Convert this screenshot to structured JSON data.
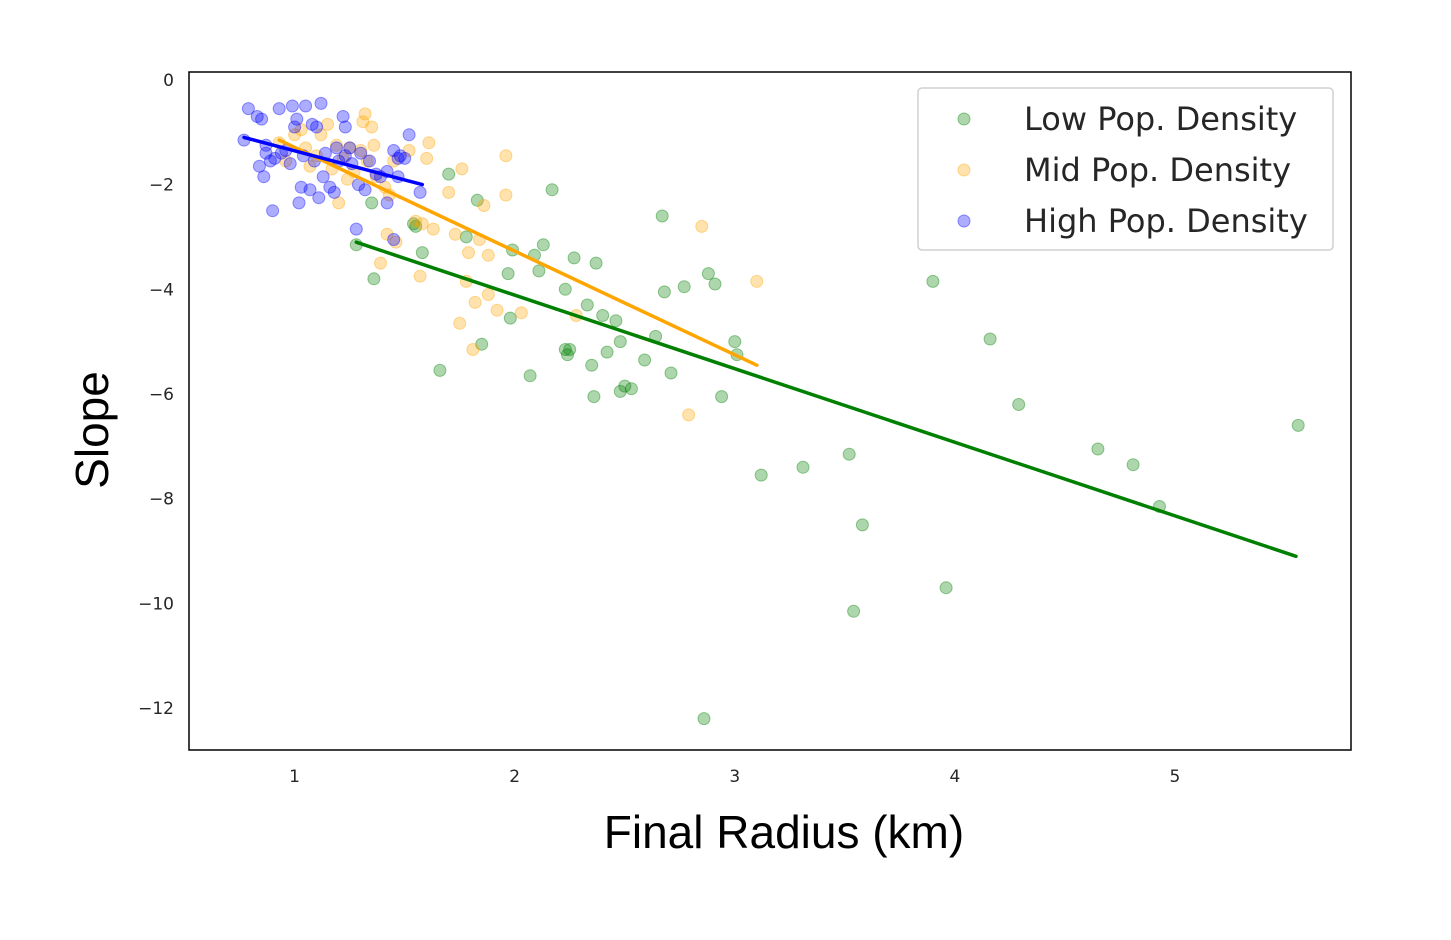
{
  "chart_data": {
    "type": "scatter",
    "xlabel": "Final Radius (km)",
    "ylabel": "Slope",
    "xlim": [
      0.52,
      5.8
    ],
    "ylim": [
      -12.8,
      0.15
    ],
    "xticks": [
      1,
      2,
      3,
      4,
      5
    ],
    "yticks": [
      0,
      -2,
      -4,
      -6,
      -8,
      -10,
      -12
    ],
    "xtick_labels": [
      "1",
      "2",
      "3",
      "4",
      "5"
    ],
    "ytick_labels": [
      "0",
      "−2",
      "−4",
      "−6",
      "−8",
      "−10",
      "−12"
    ],
    "grid": false,
    "legend_position": "top-right",
    "series": [
      {
        "name": "Low Pop. Density",
        "color": "#008000",
        "fit_line": [
          [
            1.28,
            -3.1
          ],
          [
            5.55,
            -9.1
          ]
        ],
        "points": [
          [
            1.28,
            -3.15
          ],
          [
            1.35,
            -2.35
          ],
          [
            1.36,
            -3.8
          ],
          [
            1.54,
            -2.75
          ],
          [
            1.55,
            -2.8
          ],
          [
            1.58,
            -3.3
          ],
          [
            1.66,
            -5.55
          ],
          [
            1.7,
            -1.8
          ],
          [
            1.78,
            -3.0
          ],
          [
            1.83,
            -2.3
          ],
          [
            1.85,
            -5.05
          ],
          [
            1.97,
            -3.7
          ],
          [
            1.98,
            -4.55
          ],
          [
            1.99,
            -3.25
          ],
          [
            2.07,
            -5.65
          ],
          [
            2.09,
            -3.35
          ],
          [
            2.11,
            -3.65
          ],
          [
            2.13,
            -3.15
          ],
          [
            2.17,
            -2.1
          ],
          [
            2.23,
            -5.15
          ],
          [
            2.23,
            -4.0
          ],
          [
            2.24,
            -5.25
          ],
          [
            2.25,
            -5.15
          ],
          [
            2.27,
            -3.4
          ],
          [
            2.33,
            -4.3
          ],
          [
            2.35,
            -5.45
          ],
          [
            2.36,
            -6.05
          ],
          [
            2.37,
            -3.5
          ],
          [
            2.4,
            -4.5
          ],
          [
            2.42,
            -5.2
          ],
          [
            2.46,
            -4.6
          ],
          [
            2.48,
            -5.0
          ],
          [
            2.48,
            -5.95
          ],
          [
            2.5,
            -5.85
          ],
          [
            2.53,
            -5.9
          ],
          [
            2.59,
            -5.35
          ],
          [
            2.64,
            -4.9
          ],
          [
            2.67,
            -2.6
          ],
          [
            2.68,
            -4.05
          ],
          [
            2.71,
            -5.6
          ],
          [
            2.77,
            -3.95
          ],
          [
            2.86,
            -12.2
          ],
          [
            2.88,
            -3.7
          ],
          [
            2.91,
            -3.9
          ],
          [
            2.94,
            -6.05
          ],
          [
            3.0,
            -5.0
          ],
          [
            3.01,
            -5.25
          ],
          [
            3.12,
            -7.55
          ],
          [
            3.31,
            -7.4
          ],
          [
            3.52,
            -7.15
          ],
          [
            3.54,
            -10.15
          ],
          [
            3.58,
            -8.5
          ],
          [
            3.9,
            -3.85
          ],
          [
            3.96,
            -9.7
          ],
          [
            4.16,
            -4.95
          ],
          [
            4.29,
            -6.2
          ],
          [
            4.65,
            -7.05
          ],
          [
            4.81,
            -7.35
          ],
          [
            4.93,
            -8.15
          ],
          [
            5.56,
            -6.6
          ]
        ]
      },
      {
        "name": "Mid Pop. Density",
        "color": "#FFA500",
        "fit_line": [
          [
            0.93,
            -1.15
          ],
          [
            3.1,
            -5.45
          ]
        ],
        "points": [
          [
            0.93,
            -1.2
          ],
          [
            0.96,
            -1.55
          ],
          [
            1.0,
            -1.05
          ],
          [
            1.03,
            -0.95
          ],
          [
            1.05,
            -1.3
          ],
          [
            1.07,
            -1.65
          ],
          [
            1.1,
            -1.45
          ],
          [
            1.12,
            -1.05
          ],
          [
            1.15,
            -0.85
          ],
          [
            1.17,
            -1.7
          ],
          [
            1.19,
            -1.25
          ],
          [
            1.2,
            -2.35
          ],
          [
            1.22,
            -1.5
          ],
          [
            1.24,
            -1.9
          ],
          [
            1.25,
            -1.3
          ],
          [
            1.27,
            -1.75
          ],
          [
            1.3,
            -1.35
          ],
          [
            1.31,
            -0.8
          ],
          [
            1.32,
            -0.65
          ],
          [
            1.33,
            -1.55
          ],
          [
            1.35,
            -0.9
          ],
          [
            1.36,
            -1.25
          ],
          [
            1.37,
            -1.85
          ],
          [
            1.39,
            -3.5
          ],
          [
            1.41,
            -2.05
          ],
          [
            1.42,
            -2.95
          ],
          [
            1.43,
            -2.2
          ],
          [
            1.45,
            -1.55
          ],
          [
            1.46,
            -3.1
          ],
          [
            1.52,
            -1.35
          ],
          [
            1.55,
            -2.7
          ],
          [
            1.57,
            -3.75
          ],
          [
            1.58,
            -2.75
          ],
          [
            1.6,
            -1.5
          ],
          [
            1.61,
            -1.2
          ],
          [
            1.63,
            -2.85
          ],
          [
            1.7,
            -2.15
          ],
          [
            1.73,
            -2.95
          ],
          [
            1.75,
            -4.65
          ],
          [
            1.76,
            -1.7
          ],
          [
            1.78,
            -3.85
          ],
          [
            1.79,
            -3.3
          ],
          [
            1.81,
            -5.15
          ],
          [
            1.82,
            -4.25
          ],
          [
            1.84,
            -3.05
          ],
          [
            1.86,
            -2.4
          ],
          [
            1.88,
            -4.1
          ],
          [
            1.88,
            -3.35
          ],
          [
            1.92,
            -4.4
          ],
          [
            1.96,
            -1.45
          ],
          [
            1.96,
            -2.2
          ],
          [
            2.03,
            -4.45
          ],
          [
            2.28,
            -4.5
          ],
          [
            2.79,
            -6.4
          ],
          [
            2.85,
            -2.8
          ],
          [
            3.1,
            -3.85
          ]
        ]
      },
      {
        "name": "High Pop. Density",
        "color": "#0000FF",
        "fit_line": [
          [
            0.77,
            -1.1
          ],
          [
            1.58,
            -2.0
          ]
        ],
        "points": [
          [
            0.77,
            -1.15
          ],
          [
            0.79,
            -0.55
          ],
          [
            0.83,
            -0.7
          ],
          [
            0.84,
            -1.65
          ],
          [
            0.85,
            -0.75
          ],
          [
            0.86,
            -1.85
          ],
          [
            0.87,
            -1.25
          ],
          [
            0.87,
            -1.4
          ],
          [
            0.89,
            -1.55
          ],
          [
            0.9,
            -2.5
          ],
          [
            0.91,
            -1.5
          ],
          [
            0.93,
            -0.55
          ],
          [
            0.94,
            -1.4
          ],
          [
            0.96,
            -1.35
          ],
          [
            0.98,
            -1.6
          ],
          [
            0.99,
            -0.5
          ],
          [
            1.0,
            -0.9
          ],
          [
            1.01,
            -0.75
          ],
          [
            1.02,
            -2.35
          ],
          [
            1.03,
            -2.05
          ],
          [
            1.04,
            -1.45
          ],
          [
            1.05,
            -0.5
          ],
          [
            1.07,
            -2.1
          ],
          [
            1.08,
            -0.85
          ],
          [
            1.09,
            -1.55
          ],
          [
            1.1,
            -0.9
          ],
          [
            1.11,
            -2.25
          ],
          [
            1.12,
            -0.45
          ],
          [
            1.13,
            -1.85
          ],
          [
            1.14,
            -1.4
          ],
          [
            1.16,
            -2.05
          ],
          [
            1.18,
            -2.15
          ],
          [
            1.19,
            -1.3
          ],
          [
            1.2,
            -1.55
          ],
          [
            1.22,
            -0.7
          ],
          [
            1.23,
            -0.9
          ],
          [
            1.23,
            -1.45
          ],
          [
            1.25,
            -1.3
          ],
          [
            1.26,
            -1.6
          ],
          [
            1.28,
            -2.85
          ],
          [
            1.29,
            -2.0
          ],
          [
            1.3,
            -1.4
          ],
          [
            1.32,
            -2.1
          ],
          [
            1.34,
            -1.55
          ],
          [
            1.37,
            -1.8
          ],
          [
            1.39,
            -1.85
          ],
          [
            1.42,
            -1.75
          ],
          [
            1.42,
            -2.35
          ],
          [
            1.45,
            -1.35
          ],
          [
            1.45,
            -3.05
          ],
          [
            1.47,
            -1.85
          ],
          [
            1.47,
            -1.5
          ],
          [
            1.48,
            -1.45
          ],
          [
            1.5,
            -1.5
          ],
          [
            1.52,
            -1.05
          ],
          [
            1.57,
            -2.15
          ]
        ]
      }
    ]
  }
}
